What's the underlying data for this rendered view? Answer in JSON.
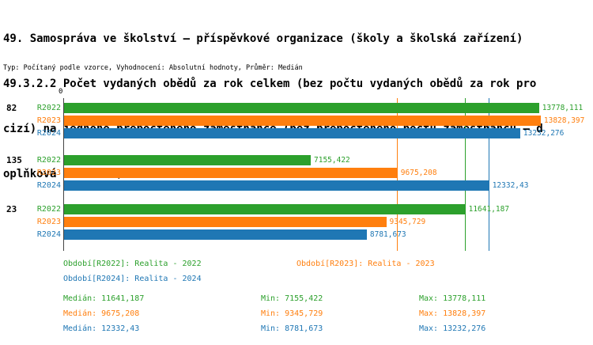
{
  "title": {
    "line1": "49. Samospráva ve školství – příspěvkové organizace (školy a školská zařízení)",
    "line2": "49.3.2.2 Počet vydaných obědů za rok celkem (bez počtu vydaných obědů za rok pro",
    "line3": "cizí) na jednoho přepočteného zaměstnance (bez přepočteného počtu zaměstnanců – d",
    "line4": "oplňková činnost )"
  },
  "subtitle": "Typ: Počítaný podle vzorce, Vyhodnocení: Absolutní hodnoty, Průměr: Medián",
  "chart_data": {
    "type": "bar",
    "orientation": "horizontal",
    "zero_label": "0",
    "categories": [
      "82",
      "135",
      "23"
    ],
    "series": [
      {
        "name": "R2022",
        "color": "#2ca02c",
        "values": [
          13778.111,
          7155.422,
          11641.187
        ],
        "value_labels": [
          "13778,111",
          "7155,422",
          "11641,187"
        ],
        "median": 11641.187
      },
      {
        "name": "R2023",
        "color": "#ff7f0e",
        "values": [
          13828.397,
          9675.208,
          9345.729
        ],
        "value_labels": [
          "13828,397",
          "9675,208",
          "9345,729"
        ],
        "median": 9675.208
      },
      {
        "name": "R2024",
        "color": "#1f77b4",
        "values": [
          13232.276,
          12332.43,
          8781.673
        ],
        "value_labels": [
          "13232,276",
          "12332,43",
          "8781,673"
        ],
        "median": 12332.43
      }
    ],
    "xlim": [
      0,
      14220
    ],
    "grid": "vertical-median-lines",
    "legend_position": "bottom"
  },
  "legend": [
    {
      "label": "Období[R2022]: Realita - 2022",
      "color": "#2ca02c"
    },
    {
      "label": "Období[R2023]: Realita - 2023",
      "color": "#ff7f0e"
    },
    {
      "label": "Období[R2024]: Realita - 2024",
      "color": "#1f77b4"
    }
  ],
  "stats": [
    {
      "median": "Medián: 11641,187",
      "min": "Min: 7155,422",
      "max": "Max: 13778,111",
      "color": "#2ca02c"
    },
    {
      "median": "Medián: 9675,208",
      "min": "Min: 9345,729",
      "max": "Max: 13828,397",
      "color": "#ff7f0e"
    },
    {
      "median": "Medián: 12332,43",
      "min": "Min: 8781,673",
      "max": "Max: 13232,276",
      "color": "#1f77b4"
    }
  ]
}
